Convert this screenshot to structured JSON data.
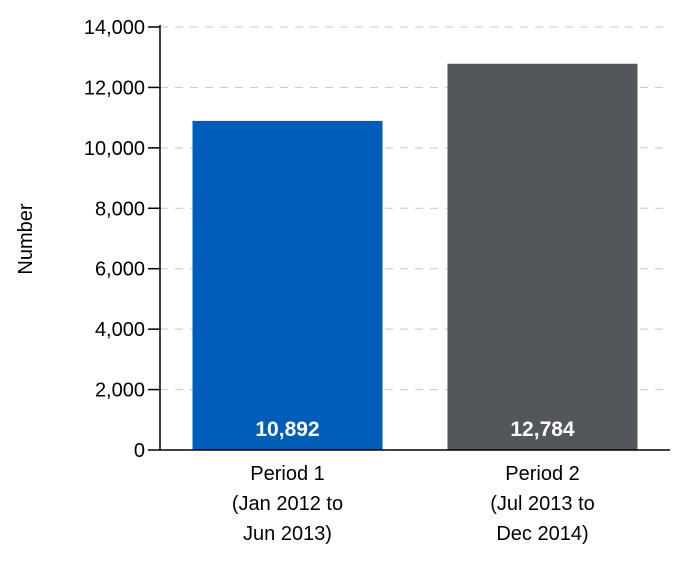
{
  "chart_data": {
    "type": "bar",
    "categories": [
      "Period 1 (Jan 2012 to Jun 2013)",
      "Period 2 (Jul 2013 to Dec 2014)"
    ],
    "category_label_lines": [
      [
        "Period 1",
        "(Jan 2012 to",
        "Jun 2013)"
      ],
      [
        "Period 2",
        "(Jul 2013 to",
        "Dec 2014)"
      ]
    ],
    "values": [
      10892,
      12784
    ],
    "data_labels": [
      "10,892",
      "12,784"
    ],
    "bar_colors": [
      "#005EB8",
      "#53565A"
    ],
    "data_label_color": "#ffffff",
    "title": "",
    "xlabel": "",
    "ylabel": "Number",
    "ylim": [
      0,
      14000
    ],
    "yticks": [
      0,
      2000,
      4000,
      6000,
      8000,
      10000,
      12000,
      14000
    ],
    "ytick_labels": [
      "0",
      "2,000",
      "4,000",
      "6,000",
      "8,000",
      "10,000",
      "12,000",
      "14,000"
    ],
    "grid": true,
    "grid_style": "dashed",
    "legend": "none"
  }
}
